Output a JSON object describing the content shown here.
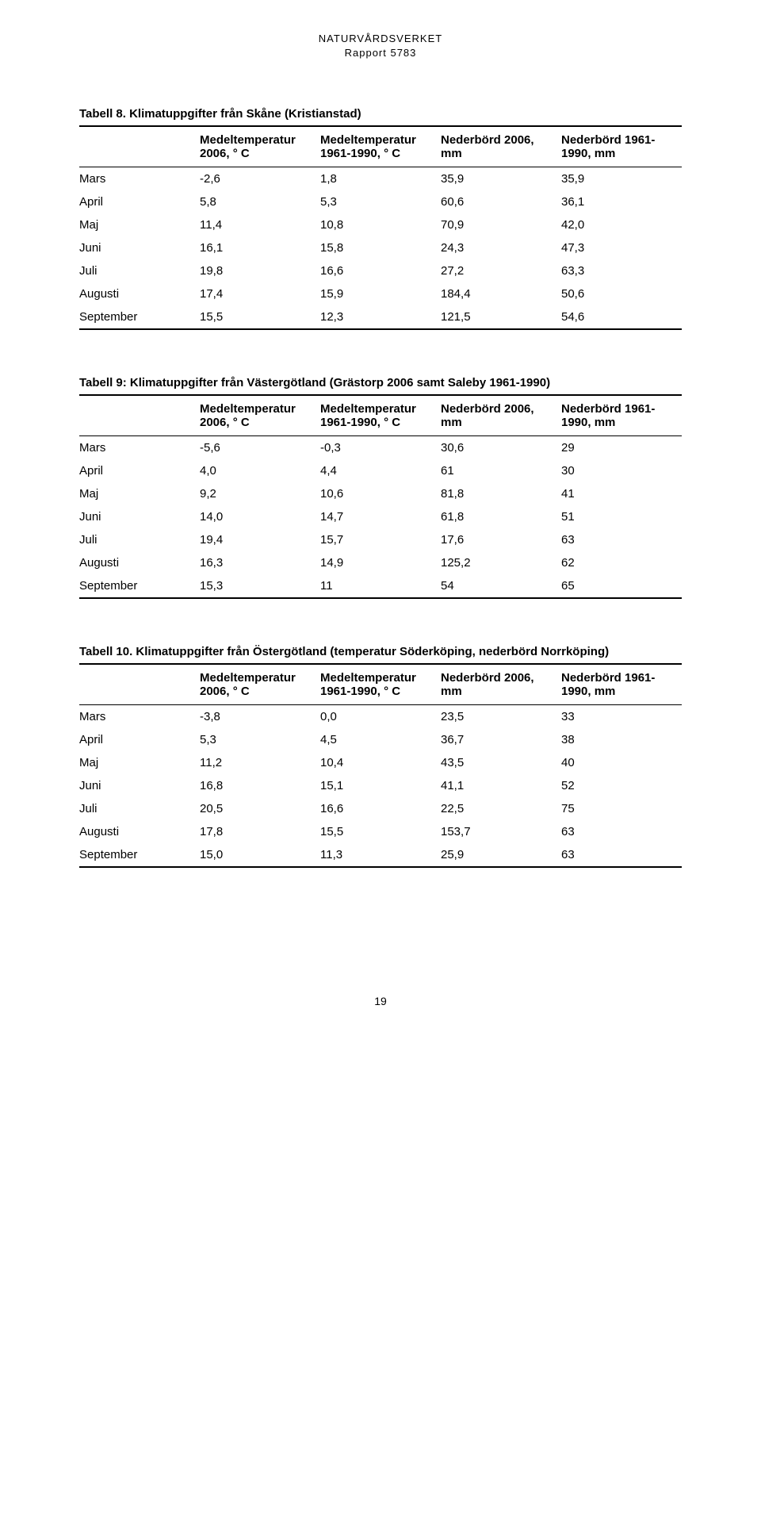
{
  "header": {
    "org": "NATURVÅRDSVERKET",
    "sub": "Rapport 5783"
  },
  "columns": {
    "month": "",
    "c0": "Medeltemperatur 2006, ° C",
    "c1": "Medeltemperatur 1961-1990, ° C",
    "c2": "Nederbörd 2006, mm",
    "c3": "Nederbörd 1961-1990, mm"
  },
  "tables": [
    {
      "caption": "Tabell 8. Klimatuppgifter från Skåne (Kristianstad)",
      "rows": [
        [
          "Mars",
          "-2,6",
          "1,8",
          "35,9",
          "35,9"
        ],
        [
          "April",
          "5,8",
          "5,3",
          "60,6",
          "36,1"
        ],
        [
          "Maj",
          "11,4",
          "10,8",
          "70,9",
          "42,0"
        ],
        [
          "Juni",
          "16,1",
          "15,8",
          "24,3",
          "47,3"
        ],
        [
          "Juli",
          "19,8",
          "16,6",
          "27,2",
          "63,3"
        ],
        [
          "Augusti",
          "17,4",
          "15,9",
          "184,4",
          "50,6"
        ],
        [
          "September",
          "15,5",
          "12,3",
          "121,5",
          "54,6"
        ]
      ]
    },
    {
      "caption": "Tabell 9: Klimatuppgifter från Västergötland (Grästorp 2006 samt Saleby 1961-1990)",
      "rows": [
        [
          "Mars",
          "-5,6",
          "-0,3",
          "30,6",
          "29"
        ],
        [
          "April",
          "4,0",
          "4,4",
          "61",
          "30"
        ],
        [
          "Maj",
          "9,2",
          "10,6",
          "81,8",
          "41"
        ],
        [
          "Juni",
          "14,0",
          "14,7",
          "61,8",
          "51"
        ],
        [
          "Juli",
          "19,4",
          "15,7",
          "17,6",
          "63"
        ],
        [
          "Augusti",
          "16,3",
          "14,9",
          "125,2",
          "62"
        ],
        [
          "September",
          "15,3",
          "11",
          "54",
          "65"
        ]
      ]
    },
    {
      "caption": "Tabell 10. Klimatuppgifter från Östergötland (temperatur Söderköping, nederbörd Norrköping)",
      "rows": [
        [
          "Mars",
          "-3,8",
          "0,0",
          "23,5",
          "33"
        ],
        [
          "April",
          "5,3",
          "4,5",
          "36,7",
          "38"
        ],
        [
          "Maj",
          "11,2",
          "10,4",
          "43,5",
          "40"
        ],
        [
          "Juni",
          "16,8",
          "15,1",
          "41,1",
          "52"
        ],
        [
          "Juli",
          "20,5",
          "16,6",
          "22,5",
          "75"
        ],
        [
          "Augusti",
          "17,8",
          "15,5",
          "153,7",
          "63"
        ],
        [
          "September",
          "15,0",
          "11,3",
          "25,9",
          "63"
        ]
      ]
    }
  ],
  "pagenum": "19"
}
